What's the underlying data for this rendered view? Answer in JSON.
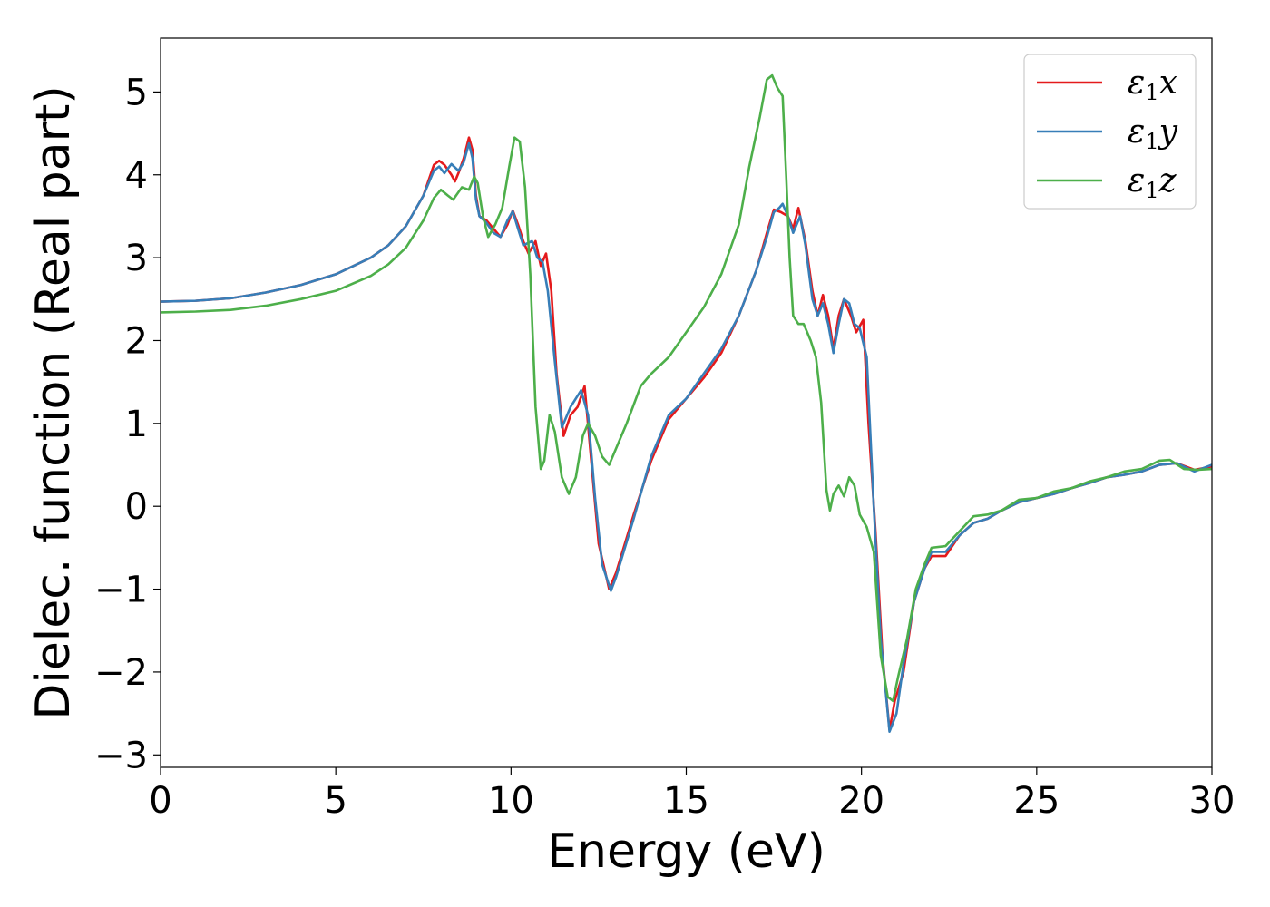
{
  "chart_data": {
    "type": "line",
    "title": "",
    "xlabel": "Energy (eV)",
    "ylabel": "Dielec. function (Real part)",
    "xlim": [
      0,
      30
    ],
    "ylim": [
      -3.15,
      5.65
    ],
    "xticks": [
      0,
      5,
      10,
      15,
      20,
      25,
      30
    ],
    "yticks": [
      -3,
      -2,
      -1,
      0,
      1,
      2,
      3,
      4,
      5
    ],
    "xtick_labels": [
      "0",
      "5",
      "10",
      "15",
      "20",
      "25",
      "30"
    ],
    "ytick_labels": [
      "−3",
      "−2",
      "−1",
      "0",
      "1",
      "2",
      "3",
      "4",
      "5"
    ],
    "grid": false,
    "legend_position": "top-right",
    "series": [
      {
        "name": "ε₁x",
        "legend_main": "ε",
        "legend_sub": "1",
        "legend_tail": "x",
        "color": "#e41a1c",
        "points": [
          [
            0,
            2.47
          ],
          [
            1,
            2.48
          ],
          [
            2,
            2.51
          ],
          [
            3,
            2.58
          ],
          [
            4,
            2.67
          ],
          [
            5,
            2.8
          ],
          [
            6,
            3.0
          ],
          [
            6.5,
            3.15
          ],
          [
            7,
            3.38
          ],
          [
            7.5,
            3.75
          ],
          [
            7.8,
            4.12
          ],
          [
            7.95,
            4.17
          ],
          [
            8.1,
            4.12
          ],
          [
            8.3,
            4.0
          ],
          [
            8.4,
            3.92
          ],
          [
            8.5,
            4.02
          ],
          [
            8.65,
            4.2
          ],
          [
            8.8,
            4.45
          ],
          [
            8.9,
            4.3
          ],
          [
            9.0,
            3.75
          ],
          [
            9.1,
            3.5
          ],
          [
            9.3,
            3.45
          ],
          [
            9.5,
            3.35
          ],
          [
            9.7,
            3.25
          ],
          [
            9.9,
            3.4
          ],
          [
            10.05,
            3.57
          ],
          [
            10.2,
            3.4
          ],
          [
            10.35,
            3.2
          ],
          [
            10.5,
            3.05
          ],
          [
            10.7,
            3.2
          ],
          [
            10.85,
            2.9
          ],
          [
            11.0,
            3.05
          ],
          [
            11.15,
            2.6
          ],
          [
            11.3,
            1.6
          ],
          [
            11.5,
            0.85
          ],
          [
            11.7,
            1.1
          ],
          [
            11.9,
            1.2
          ],
          [
            12.1,
            1.45
          ],
          [
            12.3,
            0.5
          ],
          [
            12.5,
            -0.45
          ],
          [
            12.8,
            -1.0
          ],
          [
            13.0,
            -0.8
          ],
          [
            13.5,
            -0.1
          ],
          [
            14.0,
            0.55
          ],
          [
            14.5,
            1.05
          ],
          [
            15.0,
            1.3
          ],
          [
            15.5,
            1.55
          ],
          [
            16.0,
            1.85
          ],
          [
            16.5,
            2.3
          ],
          [
            17.0,
            2.85
          ],
          [
            17.3,
            3.3
          ],
          [
            17.5,
            3.58
          ],
          [
            17.7,
            3.55
          ],
          [
            17.9,
            3.5
          ],
          [
            18.05,
            3.35
          ],
          [
            18.2,
            3.6
          ],
          [
            18.4,
            3.2
          ],
          [
            18.6,
            2.6
          ],
          [
            18.75,
            2.3
          ],
          [
            18.9,
            2.55
          ],
          [
            19.05,
            2.3
          ],
          [
            19.2,
            1.9
          ],
          [
            19.35,
            2.3
          ],
          [
            19.5,
            2.5
          ],
          [
            19.7,
            2.3
          ],
          [
            19.85,
            2.1
          ],
          [
            20.05,
            2.25
          ],
          [
            20.2,
            1.0
          ],
          [
            20.4,
            -0.3
          ],
          [
            20.6,
            -1.8
          ],
          [
            20.8,
            -2.7
          ],
          [
            20.95,
            -2.35
          ],
          [
            21.2,
            -2.0
          ],
          [
            21.5,
            -1.15
          ],
          [
            21.8,
            -0.75
          ],
          [
            22.0,
            -0.6
          ],
          [
            22.4,
            -0.6
          ],
          [
            22.8,
            -0.35
          ],
          [
            23.2,
            -0.2
          ],
          [
            23.6,
            -0.15
          ],
          [
            24.0,
            -0.05
          ],
          [
            24.5,
            0.05
          ],
          [
            25.0,
            0.1
          ],
          [
            25.5,
            0.15
          ],
          [
            26.0,
            0.22
          ],
          [
            26.5,
            0.28
          ],
          [
            27.0,
            0.35
          ],
          [
            27.5,
            0.38
          ],
          [
            28.0,
            0.42
          ],
          [
            28.5,
            0.5
          ],
          [
            29.0,
            0.52
          ],
          [
            29.5,
            0.44
          ],
          [
            30,
            0.48
          ]
        ]
      },
      {
        "name": "ε₁y",
        "legend_main": "ε",
        "legend_sub": "1",
        "legend_tail": "y",
        "color": "#377eb8",
        "points": [
          [
            0,
            2.47
          ],
          [
            1,
            2.48
          ],
          [
            2,
            2.51
          ],
          [
            3,
            2.58
          ],
          [
            4,
            2.67
          ],
          [
            5,
            2.8
          ],
          [
            6,
            3.0
          ],
          [
            6.5,
            3.15
          ],
          [
            7,
            3.38
          ],
          [
            7.5,
            3.75
          ],
          [
            7.8,
            4.05
          ],
          [
            7.95,
            4.1
          ],
          [
            8.1,
            4.02
          ],
          [
            8.3,
            4.13
          ],
          [
            8.5,
            4.05
          ],
          [
            8.65,
            4.15
          ],
          [
            8.8,
            4.38
          ],
          [
            8.9,
            4.2
          ],
          [
            9.0,
            3.7
          ],
          [
            9.1,
            3.5
          ],
          [
            9.3,
            3.42
          ],
          [
            9.5,
            3.3
          ],
          [
            9.7,
            3.25
          ],
          [
            9.9,
            3.45
          ],
          [
            10.05,
            3.56
          ],
          [
            10.2,
            3.35
          ],
          [
            10.35,
            3.15
          ],
          [
            10.6,
            3.2
          ],
          [
            10.75,
            3.0
          ],
          [
            10.9,
            2.95
          ],
          [
            11.05,
            2.6
          ],
          [
            11.25,
            1.75
          ],
          [
            11.45,
            0.95
          ],
          [
            11.7,
            1.2
          ],
          [
            12.0,
            1.4
          ],
          [
            12.2,
            1.1
          ],
          [
            12.4,
            0.1
          ],
          [
            12.6,
            -0.7
          ],
          [
            12.85,
            -1.02
          ],
          [
            13.0,
            -0.85
          ],
          [
            13.5,
            -0.15
          ],
          [
            14.0,
            0.6
          ],
          [
            14.5,
            1.1
          ],
          [
            15.0,
            1.3
          ],
          [
            15.5,
            1.6
          ],
          [
            16.0,
            1.9
          ],
          [
            16.5,
            2.3
          ],
          [
            17.0,
            2.85
          ],
          [
            17.3,
            3.25
          ],
          [
            17.5,
            3.55
          ],
          [
            17.65,
            3.6
          ],
          [
            17.75,
            3.65
          ],
          [
            17.9,
            3.5
          ],
          [
            18.05,
            3.3
          ],
          [
            18.25,
            3.5
          ],
          [
            18.4,
            3.15
          ],
          [
            18.6,
            2.5
          ],
          [
            18.75,
            2.3
          ],
          [
            18.9,
            2.45
          ],
          [
            19.05,
            2.2
          ],
          [
            19.2,
            1.85
          ],
          [
            19.35,
            2.2
          ],
          [
            19.5,
            2.5
          ],
          [
            19.65,
            2.45
          ],
          [
            19.8,
            2.2
          ],
          [
            19.95,
            2.15
          ],
          [
            20.15,
            1.8
          ],
          [
            20.35,
            0.0
          ],
          [
            20.55,
            -1.6
          ],
          [
            20.8,
            -2.72
          ],
          [
            21.0,
            -2.5
          ],
          [
            21.2,
            -1.9
          ],
          [
            21.5,
            -1.15
          ],
          [
            21.8,
            -0.75
          ],
          [
            22.0,
            -0.55
          ],
          [
            22.4,
            -0.55
          ],
          [
            22.8,
            -0.35
          ],
          [
            23.2,
            -0.2
          ],
          [
            23.6,
            -0.15
          ],
          [
            24.0,
            -0.05
          ],
          [
            24.5,
            0.05
          ],
          [
            25.0,
            0.1
          ],
          [
            25.5,
            0.15
          ],
          [
            26.0,
            0.22
          ],
          [
            26.5,
            0.28
          ],
          [
            27.0,
            0.35
          ],
          [
            27.5,
            0.38
          ],
          [
            28.0,
            0.42
          ],
          [
            28.5,
            0.5
          ],
          [
            29.0,
            0.52
          ],
          [
            29.5,
            0.42
          ],
          [
            30,
            0.5
          ]
        ]
      },
      {
        "name": "ε₁z",
        "legend_main": "ε",
        "legend_sub": "1",
        "legend_tail": "z",
        "color": "#4daf4a",
        "points": [
          [
            0,
            2.34
          ],
          [
            1,
            2.35
          ],
          [
            2,
            2.37
          ],
          [
            3,
            2.42
          ],
          [
            4,
            2.5
          ],
          [
            5,
            2.6
          ],
          [
            6,
            2.78
          ],
          [
            6.5,
            2.92
          ],
          [
            7,
            3.12
          ],
          [
            7.5,
            3.45
          ],
          [
            7.8,
            3.72
          ],
          [
            8.0,
            3.82
          ],
          [
            8.2,
            3.75
          ],
          [
            8.35,
            3.7
          ],
          [
            8.6,
            3.85
          ],
          [
            8.8,
            3.82
          ],
          [
            8.95,
            3.98
          ],
          [
            9.05,
            3.9
          ],
          [
            9.2,
            3.5
          ],
          [
            9.35,
            3.25
          ],
          [
            9.55,
            3.4
          ],
          [
            9.75,
            3.6
          ],
          [
            9.95,
            4.1
          ],
          [
            10.1,
            4.45
          ],
          [
            10.25,
            4.4
          ],
          [
            10.4,
            3.85
          ],
          [
            10.55,
            2.8
          ],
          [
            10.7,
            1.2
          ],
          [
            10.85,
            0.45
          ],
          [
            10.95,
            0.55
          ],
          [
            11.1,
            1.1
          ],
          [
            11.25,
            0.9
          ],
          [
            11.45,
            0.35
          ],
          [
            11.65,
            0.15
          ],
          [
            11.85,
            0.35
          ],
          [
            12.05,
            0.85
          ],
          [
            12.2,
            1.0
          ],
          [
            12.4,
            0.85
          ],
          [
            12.6,
            0.6
          ],
          [
            12.8,
            0.5
          ],
          [
            13.0,
            0.7
          ],
          [
            13.3,
            1.0
          ],
          [
            13.7,
            1.45
          ],
          [
            14.0,
            1.6
          ],
          [
            14.5,
            1.8
          ],
          [
            15.0,
            2.1
          ],
          [
            15.5,
            2.4
          ],
          [
            16.0,
            2.8
          ],
          [
            16.5,
            3.4
          ],
          [
            16.8,
            4.1
          ],
          [
            17.1,
            4.7
          ],
          [
            17.3,
            5.15
          ],
          [
            17.45,
            5.2
          ],
          [
            17.6,
            5.05
          ],
          [
            17.75,
            4.95
          ],
          [
            17.85,
            4.0
          ],
          [
            17.95,
            3.0
          ],
          [
            18.05,
            2.3
          ],
          [
            18.2,
            2.2
          ],
          [
            18.35,
            2.2
          ],
          [
            18.55,
            2.0
          ],
          [
            18.7,
            1.8
          ],
          [
            18.85,
            1.25
          ],
          [
            19.0,
            0.2
          ],
          [
            19.1,
            -0.05
          ],
          [
            19.2,
            0.15
          ],
          [
            19.35,
            0.25
          ],
          [
            19.5,
            0.12
          ],
          [
            19.65,
            0.35
          ],
          [
            19.8,
            0.25
          ],
          [
            19.95,
            -0.1
          ],
          [
            20.15,
            -0.25
          ],
          [
            20.35,
            -0.55
          ],
          [
            20.55,
            -1.8
          ],
          [
            20.75,
            -2.3
          ],
          [
            20.9,
            -2.35
          ],
          [
            21.05,
            -2.05
          ],
          [
            21.3,
            -1.6
          ],
          [
            21.55,
            -1.0
          ],
          [
            21.8,
            -0.7
          ],
          [
            22.0,
            -0.5
          ],
          [
            22.4,
            -0.48
          ],
          [
            22.8,
            -0.3
          ],
          [
            23.2,
            -0.12
          ],
          [
            23.6,
            -0.1
          ],
          [
            24.0,
            -0.05
          ],
          [
            24.5,
            0.08
          ],
          [
            25.0,
            0.1
          ],
          [
            25.5,
            0.18
          ],
          [
            26.0,
            0.22
          ],
          [
            26.5,
            0.3
          ],
          [
            27.0,
            0.35
          ],
          [
            27.5,
            0.42
          ],
          [
            28.0,
            0.45
          ],
          [
            28.5,
            0.55
          ],
          [
            28.8,
            0.56
          ],
          [
            29.2,
            0.45
          ],
          [
            29.6,
            0.44
          ],
          [
            30,
            0.45
          ]
        ]
      }
    ]
  }
}
